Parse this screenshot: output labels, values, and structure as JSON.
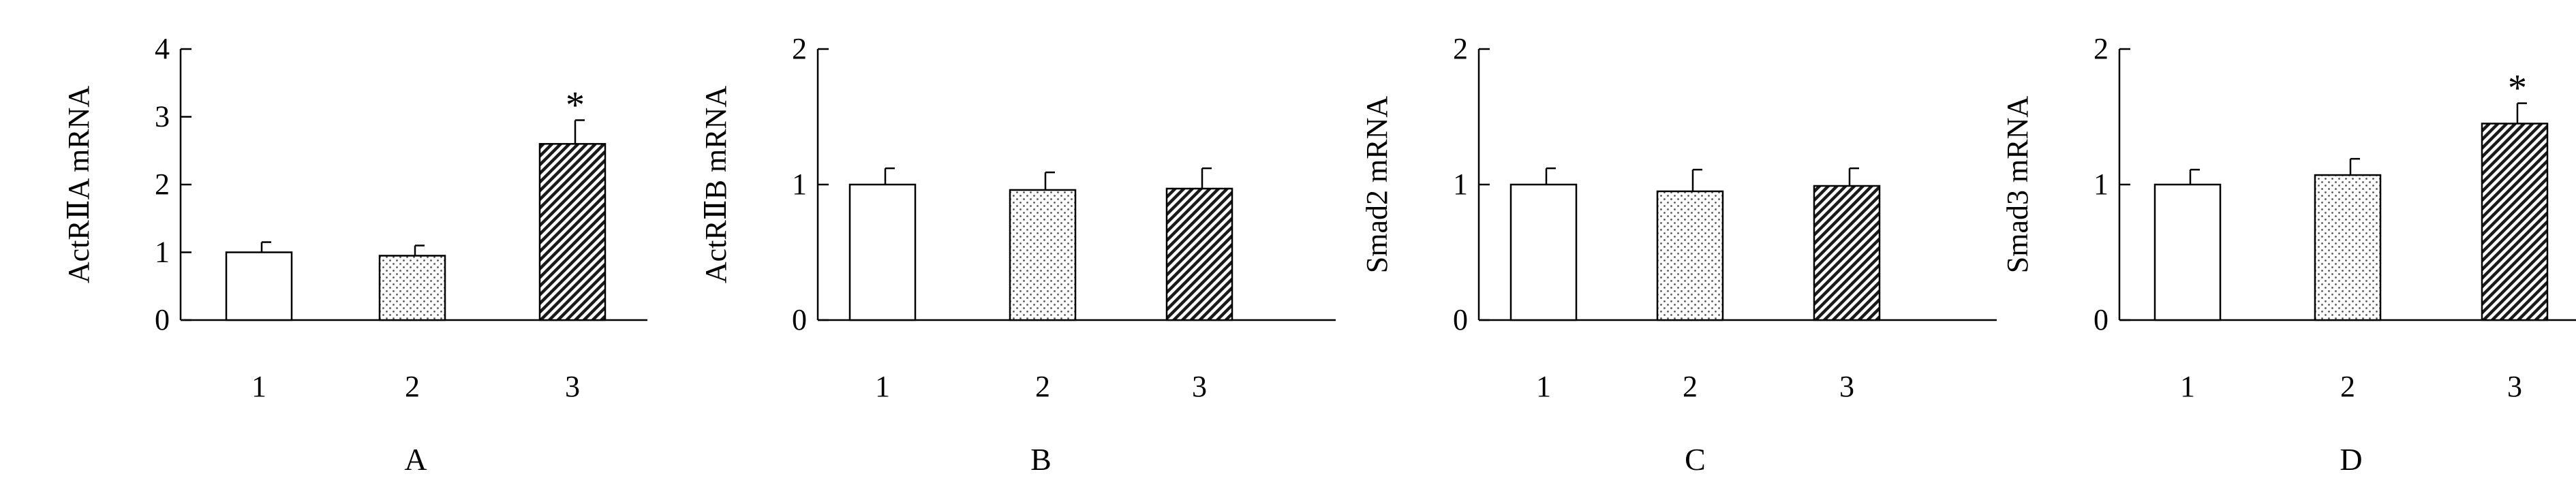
{
  "chart_data": [
    {
      "type": "bar",
      "panel_label": "A",
      "ylabel": "ActRⅡA mRNA",
      "ylim": [
        0,
        4
      ],
      "yticks": [
        0,
        1,
        2,
        3,
        4
      ],
      "categories": [
        "1",
        "2",
        "3"
      ],
      "values": [
        1.0,
        0.95,
        2.6
      ],
      "errors": [
        0.15,
        0.15,
        0.35
      ],
      "patterns": [
        "white",
        "dots",
        "hatch"
      ],
      "annotations": [
        "",
        "",
        "*"
      ]
    },
    {
      "type": "bar",
      "panel_label": "B",
      "ylabel": "ActRⅡB mRNA",
      "ylim": [
        0,
        2
      ],
      "yticks": [
        0,
        1,
        2
      ],
      "categories": [
        "1",
        "2",
        "3"
      ],
      "values": [
        1.0,
        0.96,
        0.97
      ],
      "errors": [
        0.12,
        0.13,
        0.15
      ],
      "patterns": [
        "white",
        "dots",
        "hatch"
      ],
      "annotations": [
        "",
        "",
        ""
      ]
    },
    {
      "type": "bar",
      "panel_label": "C",
      "ylabel": "Smad2 mRNA",
      "ylim": [
        0,
        2
      ],
      "yticks": [
        0,
        1,
        2
      ],
      "categories": [
        "1",
        "2",
        "3"
      ],
      "values": [
        1.0,
        0.95,
        0.99
      ],
      "errors": [
        0.12,
        0.16,
        0.13
      ],
      "patterns": [
        "white",
        "dots",
        "hatch"
      ],
      "annotations": [
        "",
        "",
        ""
      ]
    },
    {
      "type": "bar",
      "panel_label": "D",
      "ylabel": "Smad3 mRNA",
      "ylim": [
        0,
        2
      ],
      "yticks": [
        0,
        1,
        2
      ],
      "categories": [
        "1",
        "2",
        "3"
      ],
      "values": [
        1.0,
        1.07,
        1.45
      ],
      "errors": [
        0.11,
        0.12,
        0.15
      ],
      "patterns": [
        "white",
        "dots",
        "hatch"
      ],
      "annotations": [
        "",
        "",
        "*"
      ]
    }
  ]
}
